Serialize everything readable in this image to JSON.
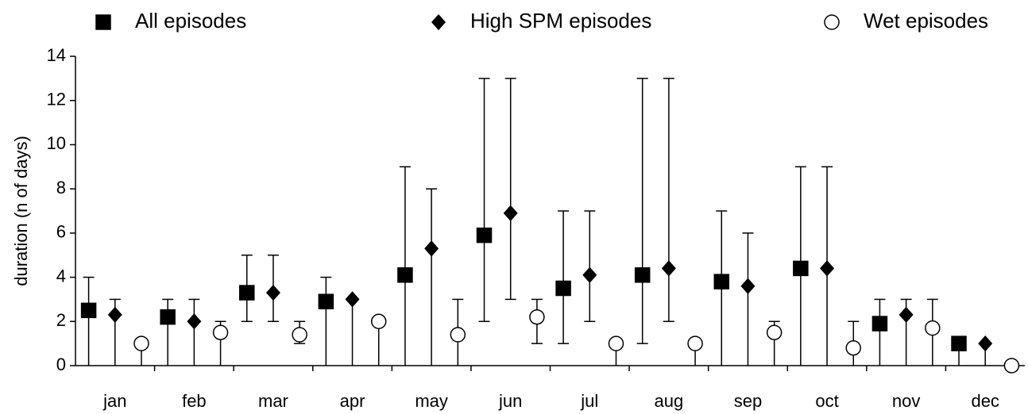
{
  "chart_data": {
    "type": "errorbar_range",
    "y_label": "duration (n of days)",
    "categories": [
      "jan",
      "feb",
      "mar",
      "apr",
      "may",
      "jun",
      "jul",
      "aug",
      "sep",
      "oct",
      "nov",
      "dec"
    ],
    "series": [
      {
        "name": "All episodes",
        "marker": "square",
        "color": "#000000",
        "values": [
          2.5,
          2.2,
          3.3,
          2.9,
          4.1,
          5.9,
          3.5,
          4.1,
          3.8,
          4.4,
          1.9,
          1.0
        ],
        "low": [
          0,
          0,
          2,
          0,
          0,
          2,
          1,
          1,
          0,
          0,
          0,
          0
        ],
        "high": [
          4,
          3,
          5,
          4,
          9,
          13,
          7,
          13,
          7,
          9,
          3,
          1
        ]
      },
      {
        "name": "High SPM episodes",
        "marker": "diamond",
        "color": "#000000",
        "values": [
          2.3,
          2.0,
          3.3,
          3.0,
          5.3,
          6.9,
          4.1,
          4.4,
          3.6,
          4.4,
          2.3,
          1.0
        ],
        "low": [
          0,
          0,
          2,
          0,
          0,
          3,
          2,
          2,
          0,
          0,
          0,
          0
        ],
        "high": [
          3,
          3,
          5,
          3,
          8,
          13,
          7,
          13,
          6,
          9,
          3,
          1
        ]
      },
      {
        "name": "Wet episodes",
        "marker": "circle",
        "color": "#ffffff",
        "values": [
          1.0,
          1.5,
          1.4,
          2.0,
          1.4,
          2.2,
          1.0,
          1.0,
          1.5,
          0.8,
          1.7,
          0
        ],
        "low": [
          0,
          0,
          1,
          0,
          0,
          1,
          0,
          0,
          0,
          0,
          0,
          0
        ],
        "high": [
          1,
          2,
          2,
          2,
          3,
          3,
          1,
          1,
          2,
          2,
          3,
          0
        ]
      }
    ],
    "ylim": [
      0,
      14
    ],
    "yticks": [
      0,
      2,
      4,
      6,
      8,
      10,
      12,
      14
    ],
    "grid": false,
    "legend": "top"
  }
}
